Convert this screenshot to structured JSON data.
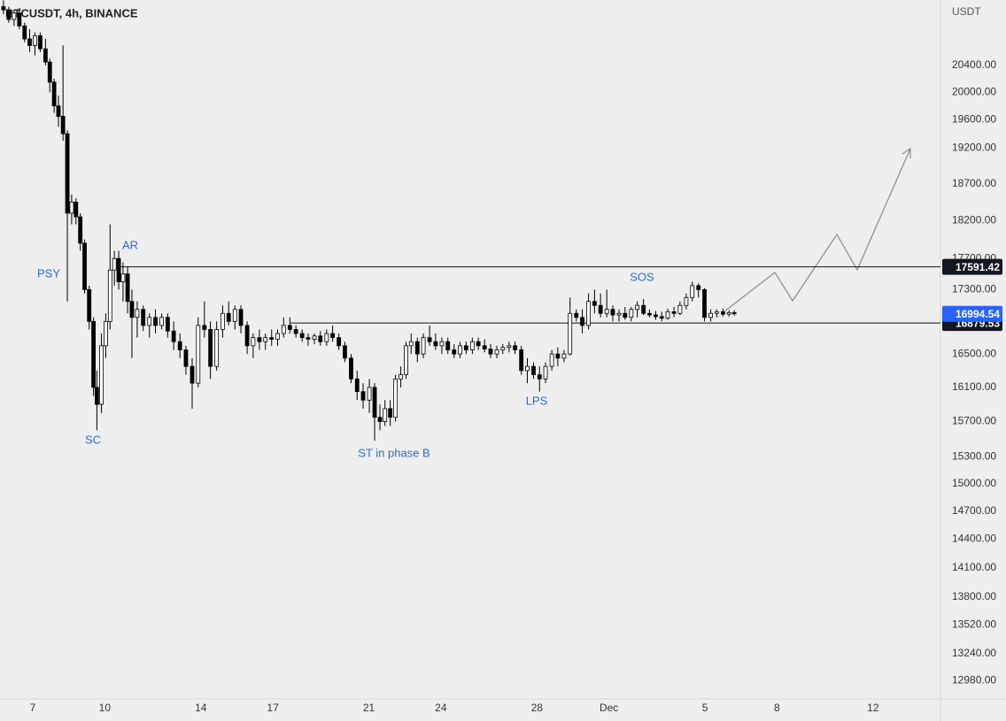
{
  "chart_data": {
    "type": "candlestick",
    "title": "BTCUSDT, 4h, BINANCE",
    "y_axis_label": "USDT",
    "log_scale": true,
    "grid": false,
    "up_color": "#ffffff",
    "down_color": "#000000",
    "x": [
      5.78,
      6,
      6.22,
      6.44,
      6.66,
      6.87,
      7.09,
      7.31,
      7.53,
      7.71,
      7.89,
      8.07,
      8.26,
      8.44,
      8.62,
      8.8,
      8.98,
      9.16,
      9.35,
      9.53,
      9.67,
      9.86,
      10.04,
      10.22,
      10.4,
      10.58,
      10.76,
      10.95,
      11.13,
      11.35,
      11.6,
      11.86,
      12.11,
      12.37,
      12.62,
      12.87,
      13.13,
      13.38,
      13.64,
      13.89,
      14.15,
      14.4,
      14.66,
      14.91,
      15.16,
      15.42,
      15.67,
      15.93,
      16.18,
      16.44,
      16.69,
      16.95,
      17.2,
      17.45,
      17.71,
      17.96,
      18.22,
      18.47,
      18.73,
      18.98,
      19.24,
      19.49,
      19.75,
      20,
      20.26,
      20.51,
      20.76,
      21.02,
      21.24,
      21.46,
      21.67,
      21.89,
      22.11,
      22.33,
      22.55,
      22.76,
      23.02,
      23.27,
      23.53,
      23.78,
      24.04,
      24.29,
      24.55,
      24.8,
      25.05,
      25.31,
      25.56,
      25.82,
      26.07,
      26.33,
      26.58,
      26.84,
      27.09,
      27.35,
      27.6,
      27.86,
      28.11,
      28.36,
      28.62,
      28.87,
      29.13,
      29.38,
      29.64,
      29.89,
      30.15,
      30.4,
      30.65,
      30.91,
      31.16,
      31.42,
      31.67,
      31.93,
      32.18,
      32.44,
      32.69,
      32.95,
      33.2,
      33.45,
      33.71,
      33.96,
      34.22,
      34.47,
      34.73,
      34.98,
      35.24,
      35.49,
      35.75,
      36,
      36.22
    ],
    "open": [
      21300,
      21250,
      21100,
      21200,
      21000,
      20800,
      20700,
      20850,
      20650,
      20450,
      20150,
      19800,
      19650,
      19400,
      18300,
      18450,
      18250,
      17900,
      17300,
      16900,
      16100,
      15900,
      16600,
      16900,
      17550,
      17700,
      17400,
      17500,
      17150,
      16950,
      17050,
      16850,
      16950,
      16850,
      16950,
      16780,
      16650,
      16550,
      16350,
      16150,
      16850,
      16800,
      16350,
      16800,
      17000,
      16900,
      17050,
      16850,
      16600,
      16700,
      16650,
      16700,
      16680,
      16750,
      16850,
      16800,
      16750,
      16700,
      16680,
      16720,
      16650,
      16750,
      16700,
      16600,
      16450,
      16200,
      16050,
      15950,
      16100,
      15750,
      15700,
      15850,
      15750,
      16200,
      16250,
      16600,
      16650,
      16500,
      16700,
      16650,
      16600,
      16650,
      16550,
      16500,
      16600,
      16550,
      16650,
      16600,
      16560,
      16500,
      16550,
      16580,
      16600,
      16550,
      16300,
      16350,
      16250,
      16200,
      16350,
      16500,
      16450,
      16500,
      17000,
      16950,
      16850,
      17150,
      17100,
      17000,
      17050,
      16980,
      17000,
      16950,
      17050,
      17100,
      17000,
      16980,
      16960,
      16940,
      17020,
      17000,
      17100,
      17200,
      17350,
      17300,
      16950,
      17000,
      17020,
      16990,
      17010
    ],
    "high": [
      21400,
      21300,
      21250,
      21280,
      21050,
      20950,
      20900,
      20900,
      20800,
      20500,
      20200,
      19950,
      20700,
      19450,
      18550,
      18500,
      18300,
      17950,
      17350,
      16950,
      16300,
      16750,
      17000,
      18150,
      17800,
      17800,
      17650,
      17600,
      17300,
      17150,
      17100,
      17000,
      17050,
      17000,
      17000,
      16900,
      16750,
      16600,
      16450,
      16950,
      17150,
      16900,
      16900,
      17100,
      17150,
      17100,
      17100,
      16900,
      16750,
      16800,
      16750,
      16800,
      16800,
      16950,
      16950,
      16850,
      16800,
      16750,
      16750,
      16780,
      16800,
      16850,
      16750,
      16650,
      16500,
      16300,
      16150,
      16200,
      16150,
      15900,
      15950,
      15950,
      16250,
      16350,
      16650,
      16750,
      16700,
      16750,
      16850,
      16750,
      16700,
      16700,
      16620,
      16650,
      16650,
      16700,
      16700,
      16680,
      16620,
      16600,
      16620,
      16650,
      16650,
      16600,
      16450,
      16400,
      16350,
      16400,
      16550,
      16580,
      16550,
      17200,
      17050,
      17050,
      17250,
      17300,
      17250,
      17300,
      17100,
      17050,
      17080,
      17080,
      17150,
      17180,
      17050,
      17030,
      17020,
      17060,
      17080,
      17150,
      17250,
      17400,
      17380,
      17320,
      17050,
      17050,
      17060,
      17040,
      17040
    ],
    "low": [
      21180,
      21050,
      21000,
      20950,
      20750,
      20600,
      20550,
      20600,
      20400,
      20000,
      19700,
      19500,
      19300,
      17150,
      18150,
      18150,
      17800,
      17250,
      16800,
      16000,
      15600,
      15800,
      16450,
      16800,
      17350,
      17300,
      17150,
      17000,
      16450,
      16700,
      16780,
      16700,
      16750,
      16800,
      16700,
      16550,
      16450,
      16250,
      15850,
      16100,
      16700,
      16200,
      16300,
      16700,
      16850,
      16800,
      16750,
      16500,
      16450,
      16550,
      16550,
      16600,
      16600,
      16700,
      16750,
      16700,
      16650,
      16600,
      16620,
      16600,
      16600,
      16650,
      16550,
      16400,
      16150,
      15950,
      15850,
      15800,
      15480,
      15600,
      15650,
      15650,
      15700,
      16100,
      16200,
      16500,
      16400,
      16450,
      16600,
      16550,
      16500,
      16500,
      16450,
      16450,
      16500,
      16500,
      16550,
      16520,
      16450,
      16450,
      16500,
      16520,
      16500,
      16250,
      16150,
      16200,
      16050,
      16150,
      16300,
      16350,
      16400,
      16480,
      16900,
      16750,
      16800,
      17000,
      16950,
      16950,
      16900,
      16900,
      16920,
      16900,
      16950,
      16980,
      16950,
      16920,
      16900,
      16920,
      16950,
      16980,
      17050,
      17150,
      17200,
      16900,
      16900,
      16950,
      16960,
      16960,
      16970
    ],
    "close": [
      21250,
      21100,
      21200,
      21000,
      20800,
      20700,
      20850,
      20650,
      20450,
      20150,
      19800,
      19650,
      19400,
      18300,
      18450,
      18250,
      17900,
      17300,
      16900,
      16100,
      15900,
      16600,
      16900,
      17550,
      17700,
      17400,
      17500,
      17150,
      16950,
      17050,
      16850,
      16950,
      16850,
      16950,
      16780,
      16650,
      16550,
      16350,
      16150,
      16850,
      16800,
      16350,
      16800,
      17000,
      16900,
      17050,
      16850,
      16600,
      16700,
      16650,
      16700,
      16680,
      16750,
      16850,
      16800,
      16750,
      16700,
      16680,
      16720,
      16650,
      16750,
      16700,
      16600,
      16450,
      16200,
      16050,
      15950,
      16100,
      15750,
      15700,
      15850,
      15750,
      16200,
      16250,
      16600,
      16650,
      16500,
      16700,
      16650,
      16600,
      16650,
      16550,
      16500,
      16600,
      16550,
      16650,
      16600,
      16560,
      16500,
      16550,
      16580,
      16600,
      16550,
      16300,
      16350,
      16250,
      16200,
      16350,
      16500,
      16450,
      16500,
      17000,
      16950,
      16850,
      17150,
      17100,
      17000,
      17050,
      16980,
      17000,
      16950,
      17050,
      17100,
      17000,
      16980,
      16960,
      16940,
      17020,
      17000,
      17100,
      17200,
      17350,
      17300,
      16950,
      17000,
      17020,
      16990,
      17010,
      16994.54
    ],
    "xlim": [
      5.635,
      44.81
    ],
    "xticks": [
      7,
      10,
      14,
      17,
      21,
      24,
      28,
      {
        "value": 31,
        "label": "Dec"
      },
      {
        "value": 35,
        "label": "5"
      },
      {
        "value": 38,
        "label": "8"
      },
      {
        "value": 42,
        "label": "12"
      }
    ],
    "ylim": [
      12805,
      21404
    ],
    "yticks": [
      {
        "value": 12980,
        "label": "12980.00"
      },
      {
        "value": 13240,
        "label": "13240.00"
      },
      {
        "value": 13520,
        "label": "13520.00"
      },
      {
        "value": 13800,
        "label": "13800.00"
      },
      {
        "value": 14100,
        "label": "14100.00"
      },
      {
        "value": 14400,
        "label": "14400.00"
      },
      {
        "value": 14700,
        "label": "14700.00"
      },
      {
        "value": 15000,
        "label": "15000.00"
      },
      {
        "value": 15300,
        "label": "15300.00"
      },
      {
        "value": 15700,
        "label": "15700.00"
      },
      {
        "value": 16100,
        "label": "16100.00"
      },
      {
        "value": 16500,
        "label": "16500.00"
      },
      {
        "value": 17300,
        "label": "17300.00"
      },
      {
        "value": 17700,
        "label": "17700.00"
      },
      {
        "value": 18200,
        "label": "18200.00"
      },
      {
        "value": 18700,
        "label": "18700.00"
      },
      {
        "value": 19200,
        "label": "19200.00"
      },
      {
        "value": 19600,
        "label": "19600.00"
      },
      {
        "value": 20000,
        "label": "20000.00"
      },
      {
        "value": 20400,
        "label": "20400.00"
      }
    ],
    "levels": [
      17591.42,
      16879.53
    ],
    "last_price": 16994.54,
    "annotations": [
      "PSY",
      "AR",
      "SC",
      "ST in phase B",
      "LPS",
      "SOS"
    ]
  }
}
